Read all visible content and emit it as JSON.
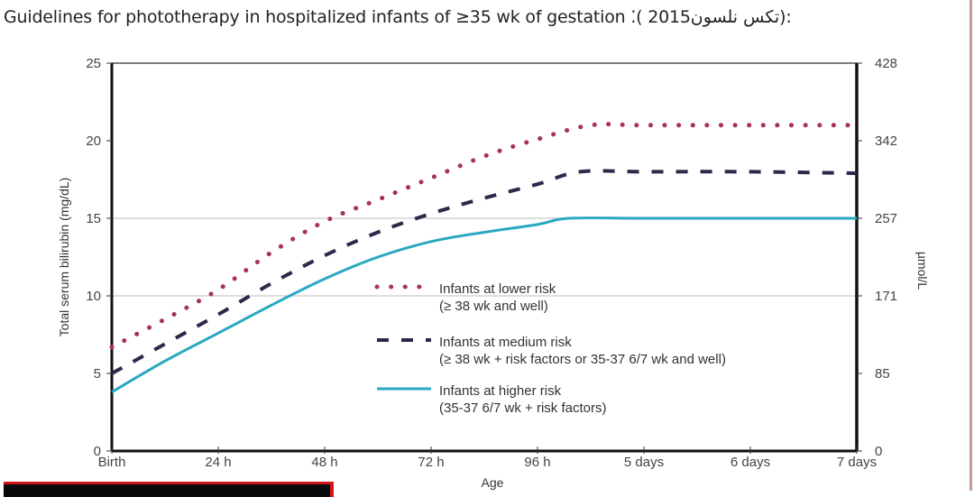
{
  "page": {
    "title_en": "Guidelines for phototherapy in hospitalized infants of ≥35 wk of gestation",
    "title_sep": " ⁚( 2015",
    "title_ar": "تكس نلسون",
    "title_end": "):"
  },
  "chart_data": {
    "type": "line",
    "title": "Guidelines for phototherapy in hospitalized infants of ≥35 wk of gestation",
    "xlabel": "Age",
    "ylabel": "Total serum bilirubin (mg/dL)",
    "ylabel_right": "µmol/L",
    "x_unit": "days",
    "xlim": [
      0,
      7
    ],
    "ylim": [
      0,
      25
    ],
    "x_ticks": [
      {
        "value": 0,
        "label": "Birth"
      },
      {
        "value": 1,
        "label": "24 h"
      },
      {
        "value": 2,
        "label": "48 h"
      },
      {
        "value": 3,
        "label": "72 h"
      },
      {
        "value": 4,
        "label": "96 h"
      },
      {
        "value": 5,
        "label": "5 days"
      },
      {
        "value": 6,
        "label": "6 days"
      },
      {
        "value": 7,
        "label": "7 days"
      }
    ],
    "y_ticks_left": [
      {
        "value": 0,
        "label": "0"
      },
      {
        "value": 5,
        "label": "5"
      },
      {
        "value": 10,
        "label": "10"
      },
      {
        "value": 15,
        "label": "15"
      },
      {
        "value": 20,
        "label": "20"
      },
      {
        "value": 25,
        "label": "25"
      }
    ],
    "y_ticks_right": [
      {
        "value": 0,
        "label": "0"
      },
      {
        "value": 5,
        "label": "85"
      },
      {
        "value": 10,
        "label": "171"
      },
      {
        "value": 15,
        "label": "257"
      },
      {
        "value": 20,
        "label": "342"
      },
      {
        "value": 25,
        "label": "428"
      }
    ],
    "gridlines_y": [
      10,
      15
    ],
    "legend_position": "center-right",
    "series": [
      {
        "name": "Infants at lower risk",
        "note": "(≥ 38 wk and well)",
        "style": "dotted",
        "color": "#a8334f",
        "x": [
          0,
          0.5,
          1,
          1.5,
          2,
          2.5,
          3,
          3.5,
          4,
          4.5,
          5,
          6,
          7
        ],
        "y": [
          6.7,
          8.5,
          10.4,
          12.8,
          14.8,
          16.2,
          17.6,
          19.0,
          20.1,
          21.0,
          21.0,
          21.0,
          21.0
        ]
      },
      {
        "name": "Infants at medium risk",
        "note": "(≥ 38 wk + risk factors or 35-37 6/7 wk and well)",
        "style": "dashed",
        "color": "#2a2a4a",
        "x": [
          0,
          0.5,
          1,
          1.5,
          2,
          2.5,
          3,
          3.5,
          4,
          4.4,
          5,
          6,
          7
        ],
        "y": [
          5.0,
          6.9,
          8.8,
          10.8,
          12.6,
          14.1,
          15.3,
          16.3,
          17.2,
          18.0,
          18.0,
          18.0,
          17.9
        ]
      },
      {
        "name": "Infants at higher risk",
        "note": "(35-37 6/7 wk + risk factors)",
        "style": "solid",
        "color": "#2aa8c0",
        "x": [
          0,
          0.5,
          1,
          1.5,
          2,
          2.5,
          3,
          3.5,
          4,
          4.3,
          5,
          6,
          7
        ],
        "y": [
          3.8,
          5.8,
          7.6,
          9.4,
          11.1,
          12.5,
          13.5,
          14.1,
          14.6,
          15.0,
          15.0,
          15.0,
          15.0
        ]
      }
    ]
  }
}
